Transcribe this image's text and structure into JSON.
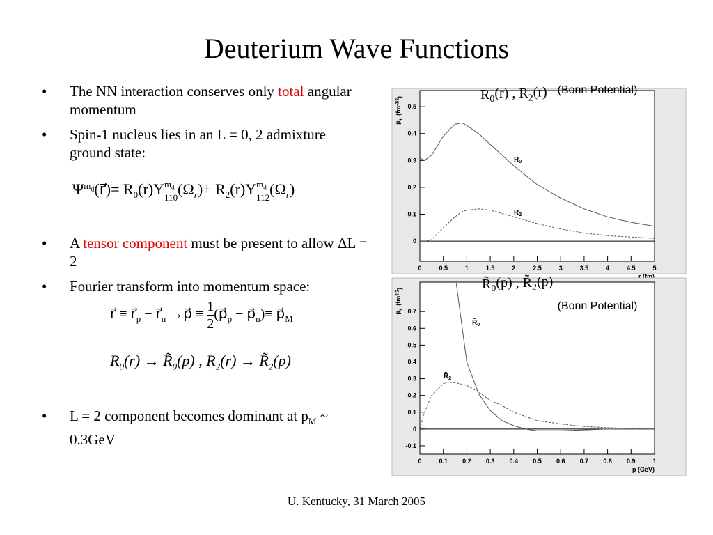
{
  "slide": {
    "title": "Deuterium Wave Functions",
    "bullets": [
      [
        "The NN interaction conserves only ",
        "total",
        " angular momentum"
      ],
      [
        "Spin-1 nucleus lies in an L = 0, 2 admixture ground state:"
      ],
      [
        "A ",
        "tensor component",
        " must be present to allow ΔL = 2"
      ],
      [
        "Fourier transform into momentum space:"
      ],
      [
        "L = 2 component becomes dominant at p",
        "M",
        " ~ 0.3GeV"
      ]
    ],
    "equations": [
      [
        "Ψ",
        "m",
        "d",
        "(",
        "r⃗",
        ")",
        "=",
        "R",
        "0",
        "(",
        "r",
        ")",
        "Y",
        "m",
        "d",
        "110",
        "(",
        "Ω",
        "r",
        ")",
        "+",
        "R",
        "2",
        "(",
        "r",
        ")",
        "Y",
        "m",
        "d",
        "112",
        "(",
        "Ω",
        "r",
        ")"
      ],
      [
        "r⃗ ≡ r⃗",
        "p",
        " − r⃗",
        "n",
        " →p⃗ ≡ ",
        "1",
        "2",
        "(p⃗",
        "p",
        " − p⃗",
        "n",
        ")≡ p⃗",
        "M"
      ],
      [
        "R",
        "0",
        "(r) → R̃",
        "0",
        "(p) , R",
        "2",
        "(r) → R̃",
        "2",
        "(p)"
      ]
    ],
    "footer": "U. Kentucky, 31 March 2005"
  },
  "chart_data": [
    {
      "type": "line",
      "title": [
        "R",
        "0",
        "(r) , R",
        "2",
        "(r)"
      ],
      "annotation": "(Bonn Potential)",
      "xlabel": "r (fm)",
      "ylabel": [
        "R",
        "L",
        " (fm",
        "-3/2",
        ")"
      ],
      "xlim": [
        0,
        5
      ],
      "ylim": [
        -0.075,
        0.56
      ],
      "xticks": [
        0,
        0.5,
        1,
        1.5,
        2,
        2.5,
        3,
        3.5,
        4,
        4.5,
        5
      ],
      "yticks": [
        0,
        0.1,
        0.2,
        0.3,
        0.4,
        0.5
      ],
      "x": [
        0,
        0.1,
        0.25,
        0.5,
        0.75,
        0.9,
        1,
        1.25,
        1.5,
        2,
        2.5,
        3,
        3.5,
        4,
        4.5,
        5
      ],
      "series": [
        {
          "name": [
            "R",
            "0"
          ],
          "color": "#555555",
          "line_style": "solid",
          "values": [
            0.31,
            0.3,
            0.32,
            0.39,
            0.435,
            0.44,
            0.43,
            0.4,
            0.36,
            0.28,
            0.21,
            0.16,
            0.12,
            0.09,
            0.07,
            0.055
          ]
        },
        {
          "name": [
            "R",
            "2"
          ],
          "color": "#555555",
          "line_style": "dashed",
          "values": [
            0,
            0,
            0.005,
            0.05,
            0.09,
            0.11,
            0.115,
            0.12,
            0.115,
            0.09,
            0.065,
            0.045,
            0.03,
            0.02,
            0.015,
            0.01
          ]
        }
      ]
    },
    {
      "type": "line",
      "title": [
        "R̃",
        "0",
        "(p) , R̃",
        "2",
        "(p)"
      ],
      "annotation": "(Bonn Potential)",
      "xlabel": "p (GeV)",
      "ylabel": [
        "R",
        "L",
        " (fm",
        "3/2",
        ")"
      ],
      "xlim": [
        0,
        1
      ],
      "ylim": [
        -0.15,
        0.875
      ],
      "xticks": [
        0,
        0.1,
        0.2,
        0.3,
        0.4,
        0.5,
        0.6,
        0.7,
        0.8,
        0.9,
        1
      ],
      "yticks": [
        -0.1,
        0,
        0.1,
        0.2,
        0.3,
        0.4,
        0.5,
        0.6,
        0.7
      ],
      "x": [
        0,
        0.02,
        0.05,
        0.1,
        0.12,
        0.155,
        0.2,
        0.25,
        0.3,
        0.35,
        0.4,
        0.45,
        0.5,
        0.6,
        0.7,
        0.8,
        0.9,
        1
      ],
      "series": [
        {
          "name": [
            "R̃",
            "0"
          ],
          "color": "#555555",
          "line_style": "solid",
          "values": [
            null,
            null,
            null,
            null,
            null,
            0.87,
            0.4,
            0.21,
            0.11,
            0.05,
            0.02,
            0,
            -0.01,
            -0.01,
            -0.005,
            0,
            0,
            0
          ]
        },
        {
          "name": [
            "R̃",
            "2"
          ],
          "color": "#555555",
          "line_style": "dashed",
          "values": [
            0,
            0.1,
            0.2,
            0.27,
            0.28,
            0.275,
            0.26,
            0.22,
            0.17,
            0.14,
            0.1,
            0.075,
            0.05,
            0.03,
            0.015,
            0.008,
            0.003,
            0
          ]
        }
      ]
    }
  ]
}
